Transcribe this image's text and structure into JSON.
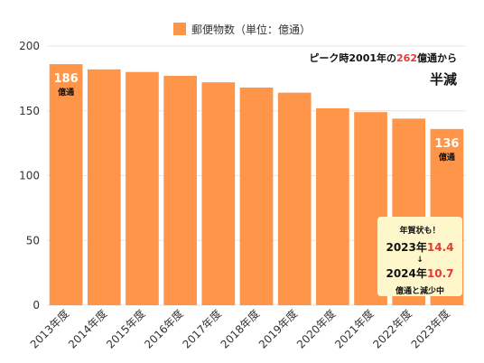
{
  "chart_data": {
    "type": "bar",
    "categories": [
      "2013年度",
      "2014年度",
      "2015年度",
      "2016年度",
      "2017年度",
      "2018年度",
      "2019年度",
      "2020年度",
      "2021年度",
      "2022年度",
      "2023年度"
    ],
    "series": [
      {
        "name": "郵便物数（単位：億通）",
        "values": [
          186,
          182,
          180,
          177,
          172,
          168,
          164,
          152,
          149,
          144,
          136
        ]
      }
    ],
    "ylim": [
      0,
      200
    ],
    "yticks": [
      0,
      50,
      100,
      150,
      200
    ],
    "grid": true,
    "legend": "top-center",
    "bar_color": "#FF9549",
    "data_labels": [
      {
        "category": "2013年度",
        "value": "186",
        "unit": "億通"
      },
      {
        "category": "2023年度",
        "value": "136",
        "unit": "億通"
      }
    ]
  },
  "annotation": {
    "prefix": "ピーク時2001年の",
    "highlight": "262",
    "suffix": "億通から",
    "line2": "半減"
  },
  "callout": {
    "line1": "年賀状も！",
    "year_a": "2023年",
    "val_a": "14.4",
    "arrow": "↓",
    "year_b": "2024年",
    "val_b": "10.7",
    "line5": "億通と減少中"
  },
  "accent_color": "#E53935"
}
